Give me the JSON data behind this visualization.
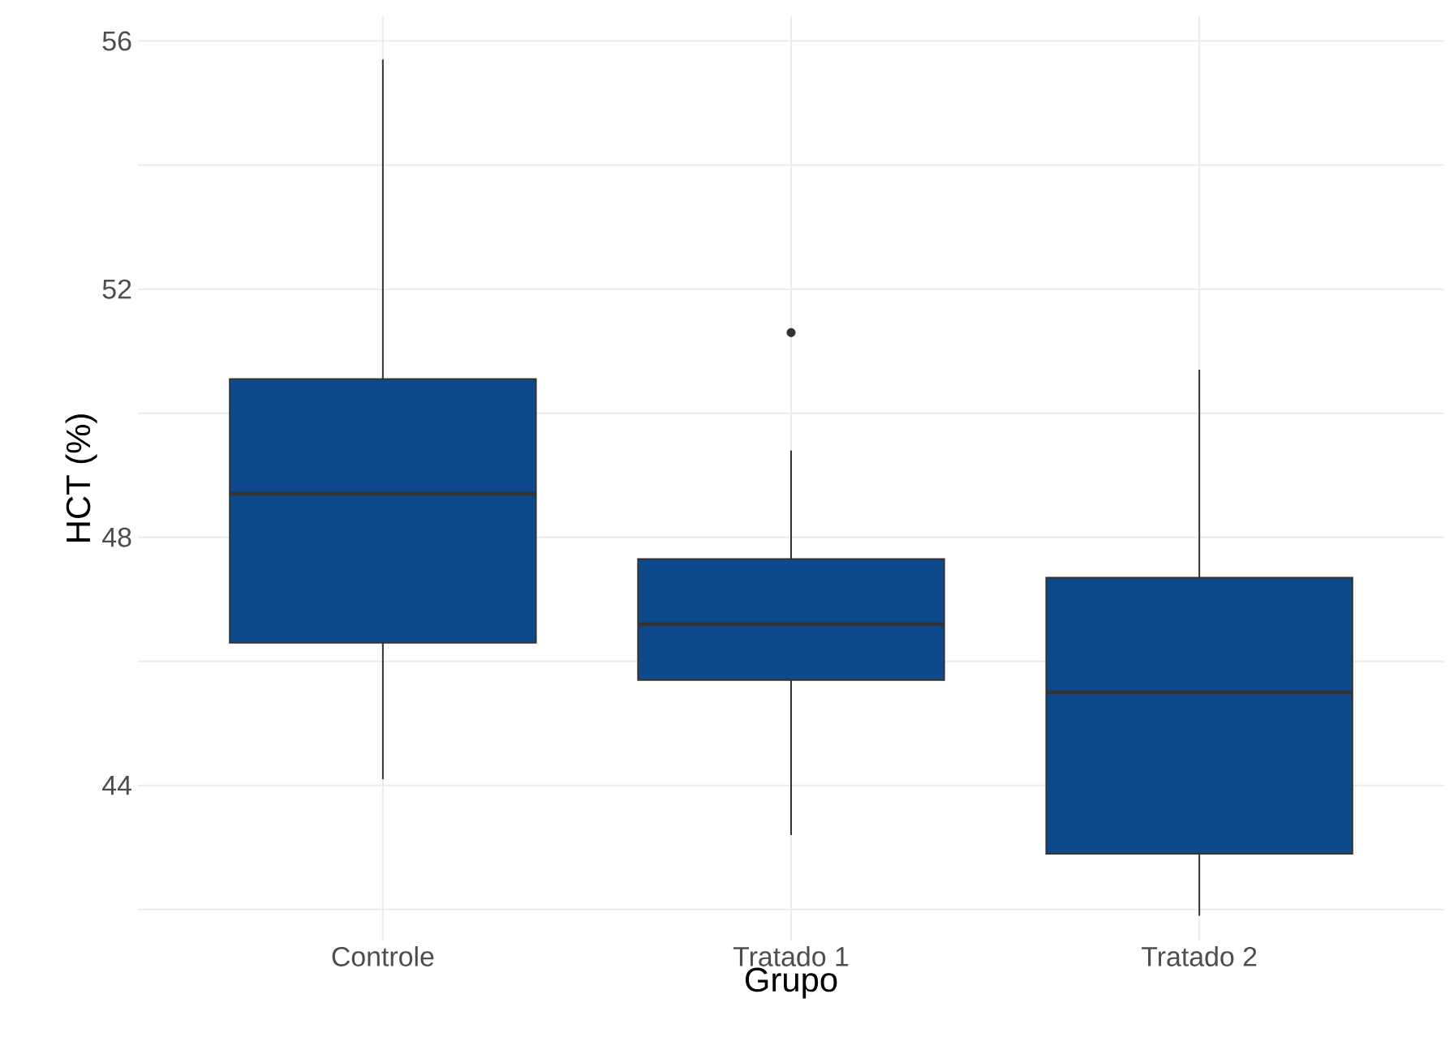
{
  "chart_data": {
    "type": "box",
    "xlabel": "Grupo",
    "ylabel": "HCT (%)",
    "categories": [
      "Controle",
      "Tratado 1",
      "Tratado 2"
    ],
    "boxes": [
      {
        "low": 44.1,
        "q1": 46.3,
        "median": 48.7,
        "q3": 50.55,
        "high": 55.7
      },
      {
        "low": 43.2,
        "q1": 45.7,
        "median": 46.6,
        "q3": 47.65,
        "high": 49.4,
        "outliers": [
          51.3
        ]
      },
      {
        "low": 41.9,
        "q1": 42.9,
        "median": 45.5,
        "q3": 47.35,
        "high": 50.7
      }
    ],
    "color": "#0e4a8b",
    "ylim": [
      41.5,
      56.4
    ],
    "yticks": [
      {
        "value": 42,
        "label": null
      },
      44,
      {
        "value": 46,
        "label": null
      },
      48,
      {
        "value": 50,
        "label": null
      },
      52,
      {
        "value": 54,
        "label": null
      },
      56
    ],
    "grid": true
  }
}
